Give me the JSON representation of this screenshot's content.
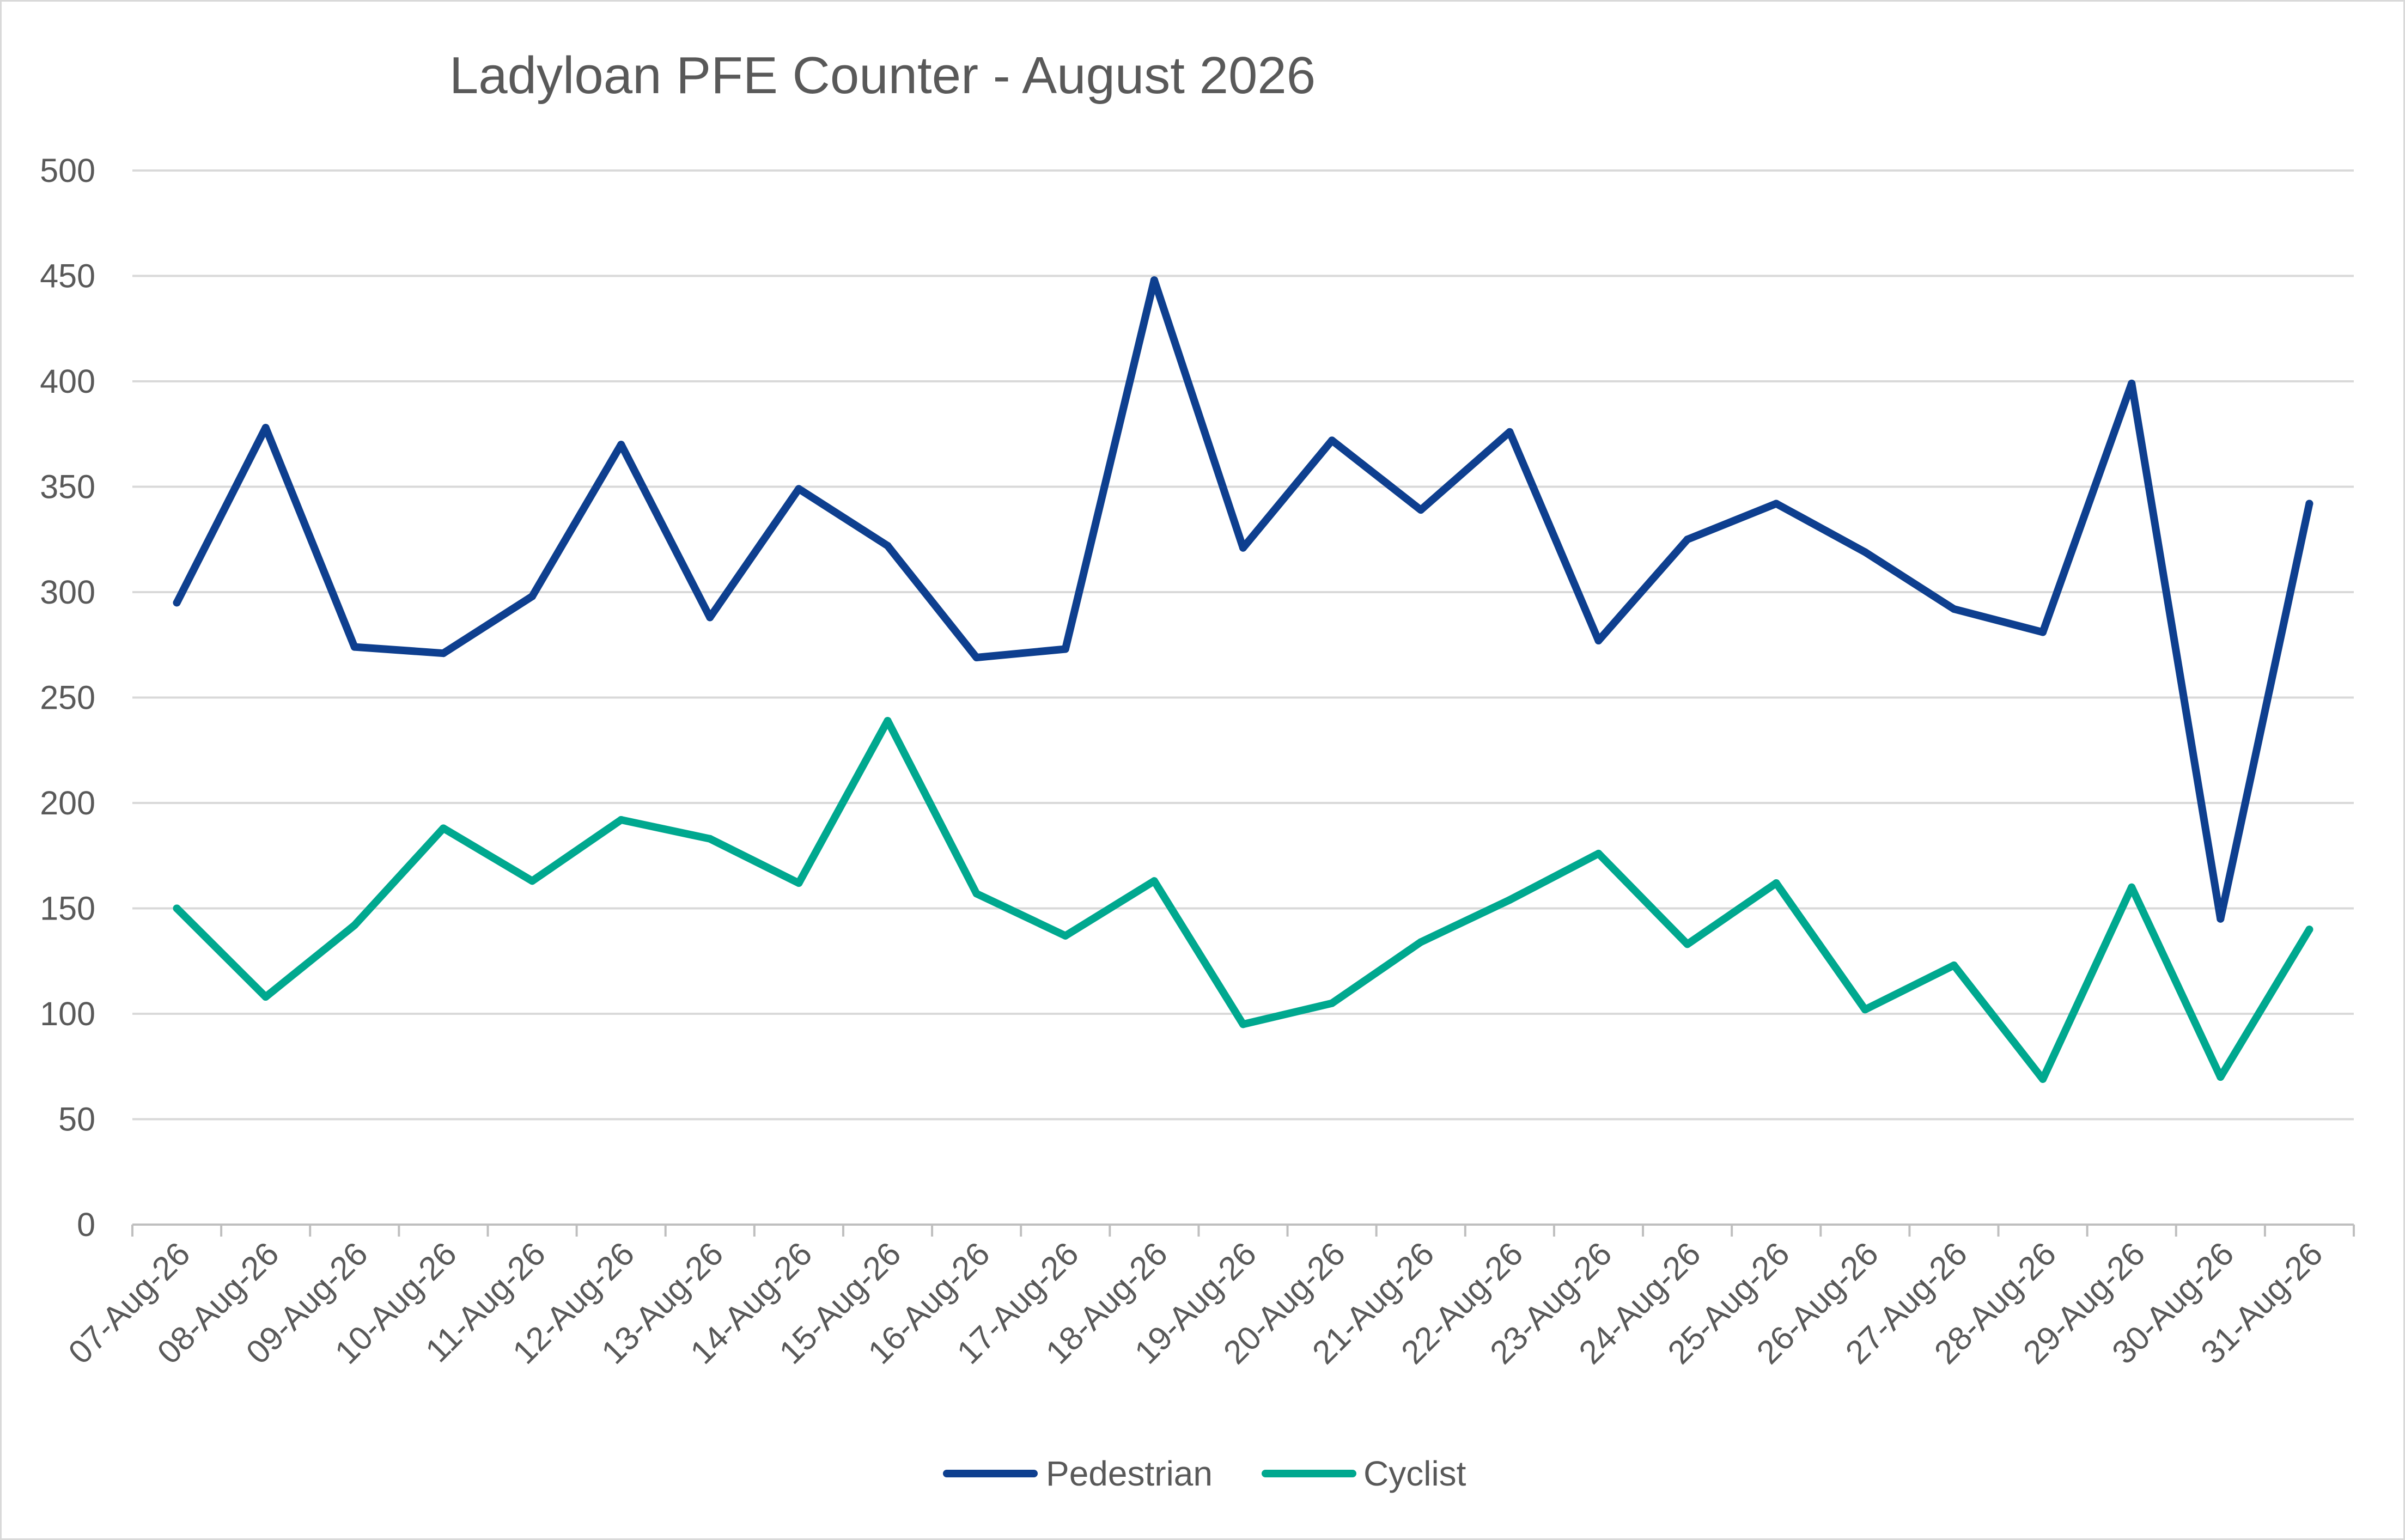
{
  "chart_data": {
    "type": "line",
    "title": "Ladyloan PFE Counter - August 2026",
    "xlabel": "",
    "ylabel": "",
    "ylim": [
      0,
      500
    ],
    "yticks": [
      0,
      50,
      100,
      150,
      200,
      250,
      300,
      350,
      400,
      450,
      500
    ],
    "grid": true,
    "legend_position": "bottom",
    "categories": [
      "07-Aug-26",
      "08-Aug-26",
      "09-Aug-26",
      "10-Aug-26",
      "11-Aug-26",
      "12-Aug-26",
      "13-Aug-26",
      "14-Aug-26",
      "15-Aug-26",
      "16-Aug-26",
      "17-Aug-26",
      "18-Aug-26",
      "19-Aug-26",
      "20-Aug-26",
      "21-Aug-26",
      "22-Aug-26",
      "23-Aug-26",
      "24-Aug-26",
      "25-Aug-26",
      "26-Aug-26",
      "27-Aug-26",
      "28-Aug-26",
      "29-Aug-26",
      "30-Aug-26",
      "31-Aug-26"
    ],
    "series": [
      {
        "name": "Pedestrian",
        "color": "#0e3f8f",
        "values": [
          295,
          378,
          274,
          271,
          298,
          370,
          288,
          349,
          322,
          269,
          273,
          448,
          321,
          372,
          339,
          376,
          277,
          325,
          342,
          319,
          292,
          281,
          399,
          145,
          342
        ]
      },
      {
        "name": "Cyclist",
        "color": "#00a88f",
        "values": [
          150,
          108,
          142,
          188,
          163,
          192,
          183,
          162,
          239,
          157,
          137,
          163,
          95,
          105,
          134,
          154,
          176,
          133,
          162,
          102,
          123,
          69,
          160,
          70,
          140
        ]
      }
    ]
  }
}
